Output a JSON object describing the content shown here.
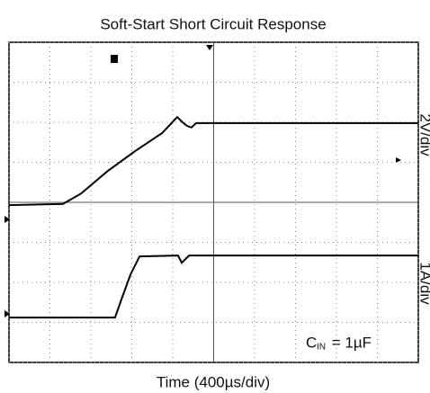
{
  "chart_data": {
    "type": "line",
    "title": "Soft-Start Short Circuit Response",
    "xlabel": "Time (400µs/div)",
    "annotation": {
      "symbol": "C",
      "subscript": "IN",
      "text": " = 1µF"
    },
    "xlim": [
      0,
      10
    ],
    "ylim": [
      0,
      8
    ],
    "xticks": [
      0,
      1,
      2,
      3,
      4,
      5,
      6,
      7,
      8,
      9,
      10
    ],
    "yticks": [
      0,
      1,
      2,
      3,
      4,
      5,
      6,
      7,
      8
    ],
    "grid": true,
    "series": [
      {
        "name": "2V/div",
        "color": "#000000",
        "x": [
          0,
          1.32,
          1.76,
          2.42,
          3.08,
          3.74,
          4.11,
          4.24,
          4.35,
          4.46,
          4.57,
          10
        ],
        "values": [
          3.93,
          3.96,
          4.22,
          4.79,
          5.28,
          5.73,
          6.13,
          6.0,
          5.91,
          5.87,
          5.98,
          5.98
        ]
      },
      {
        "name": "1A/div",
        "color": "#000000",
        "x": [
          0,
          2.59,
          2.77,
          2.97,
          3.19,
          4.13,
          4.22,
          4.4,
          10
        ],
        "values": [
          1.12,
          1.12,
          1.64,
          2.2,
          2.65,
          2.67,
          2.49,
          2.67,
          2.67
        ]
      }
    ]
  }
}
